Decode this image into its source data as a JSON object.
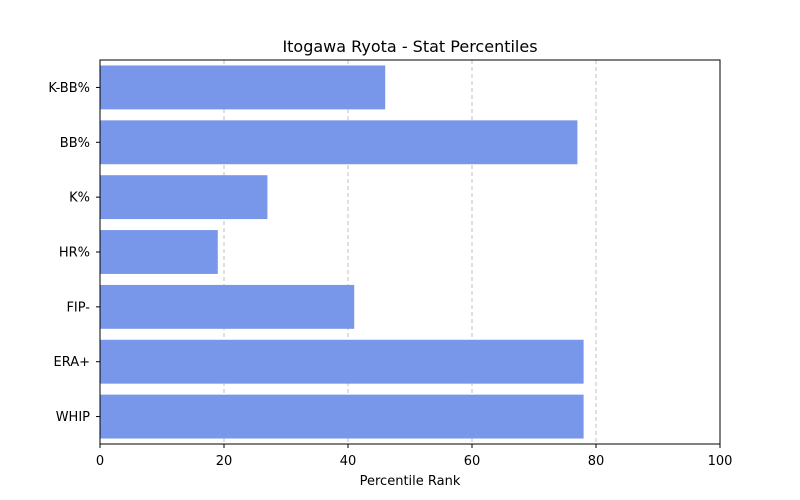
{
  "chart_data": {
    "type": "bar",
    "orientation": "horizontal",
    "title": "Itogawa Ryota - Stat Percentiles",
    "xlabel": "Percentile Rank",
    "ylabel": "",
    "xlim": [
      0,
      100
    ],
    "xticks": [
      0,
      20,
      40,
      60,
      80,
      100
    ],
    "grid": "vertical-dashed",
    "bar_color": "#7896ea",
    "categories": [
      "K-BB%",
      "BB%",
      "K%",
      "HR%",
      "FIP-",
      "ERA+",
      "WHIP"
    ],
    "values": [
      46,
      77,
      27,
      19,
      41,
      78,
      78
    ]
  }
}
